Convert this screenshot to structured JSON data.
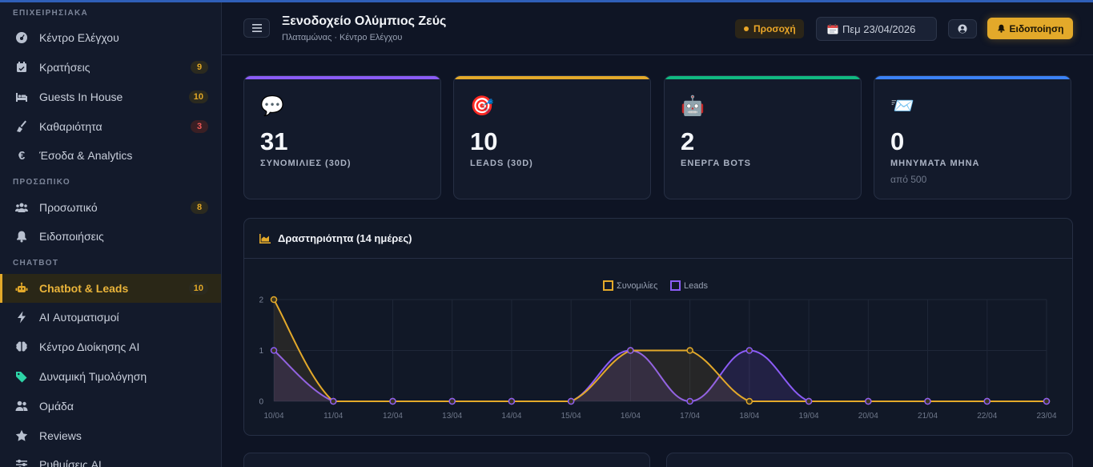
{
  "sidebar": {
    "sections": [
      {
        "title": "ΕΠΙΧΕΙΡΗΣΙΑΚΑ"
      },
      {
        "title": "ΠΡΟΣΩΠΙΚΟ"
      },
      {
        "title": "CHATBOT"
      }
    ],
    "items": [
      {
        "label": "Κέντρο Ελέγχου",
        "icon": "dashboard-icon"
      },
      {
        "label": "Κρατήσεις",
        "icon": "calendar-icon",
        "badge": "9"
      },
      {
        "label": "Guests In House",
        "icon": "bed-icon",
        "badge": "10"
      },
      {
        "label": "Καθαριότητα",
        "icon": "broom-icon",
        "badge": "3"
      },
      {
        "label": "Έσοδα & Analytics",
        "icon": "euro-icon"
      },
      {
        "label": "Προσωπικό",
        "icon": "users-icon",
        "badge": "8"
      },
      {
        "label": "Ειδοποιήσεις",
        "icon": "bell-icon"
      },
      {
        "label": "Chatbot & Leads",
        "icon": "robot-icon",
        "badge": "10"
      },
      {
        "label": "AI Αυτοματισμοί",
        "icon": "bolt-icon"
      },
      {
        "label": "Κέντρο Διοίκησης AI",
        "icon": "brain-icon"
      },
      {
        "label": "Δυναμική Τιμολόγηση",
        "icon": "tags-icon"
      },
      {
        "label": "Ομάδα",
        "icon": "team-icon"
      },
      {
        "label": "Reviews",
        "icon": "star-icon"
      },
      {
        "label": "Ρυθμίσεις AI",
        "icon": "sliders-icon"
      }
    ]
  },
  "header": {
    "title": "Ξενοδοχείο Ολύμπιος Ζεύς",
    "subtitle": "Πλαταμώνας · Κέντρο Ελέγχου",
    "warning": "Προσοχή",
    "date": "Πεμ 23/04/2026",
    "notify_label": "Ειδοποίηση"
  },
  "cards": [
    {
      "emoji": "💬",
      "value": "31",
      "label": "ΣΥΝΟΜΙΛΙΕΣ (30D)",
      "color": "#8b5cf6"
    },
    {
      "emoji": "🎯",
      "value": "10",
      "label": "LEADS (30D)",
      "color": "#e3a92a"
    },
    {
      "emoji": "🤖",
      "value": "2",
      "label": "ΕΝΕΡΓΑ BOTS",
      "color": "#10b981"
    },
    {
      "emoji": "📨",
      "value": "0",
      "label": "ΜΗΝΥΜΑΤΑ ΜΗΝΑ",
      "sub": "από 500",
      "color": "#3b82f6"
    }
  ],
  "activity": {
    "title": "Δραστηριότητα (14 ημέρες)"
  },
  "chart_data": {
    "type": "line",
    "title": "Δραστηριότητα (14 ημέρες)",
    "categories": [
      "10/04",
      "11/04",
      "12/04",
      "13/04",
      "14/04",
      "15/04",
      "16/04",
      "17/04",
      "18/04",
      "19/04",
      "20/04",
      "21/04",
      "22/04",
      "23/04"
    ],
    "series": [
      {
        "name": "Συνομιλίες",
        "color": "#e3a92a",
        "values": [
          2,
          0,
          0,
          0,
          0,
          0,
          1,
          1,
          0,
          0,
          0,
          0,
          0,
          0
        ]
      },
      {
        "name": "Leads",
        "color": "#8b5cf6",
        "values": [
          1,
          0,
          0,
          0,
          0,
          0,
          1,
          0,
          1,
          0,
          0,
          0,
          0,
          0
        ]
      }
    ],
    "ylim": [
      0,
      2
    ],
    "yticks": [
      0,
      1,
      2
    ],
    "legend": "top-center",
    "grid": true
  }
}
